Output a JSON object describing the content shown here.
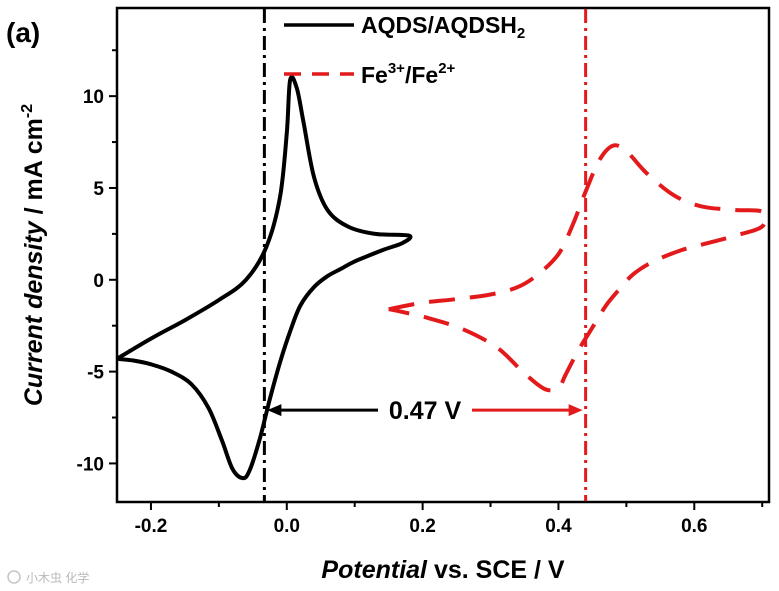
{
  "panel_label": "(a)",
  "watermark": "小木虫 化学",
  "chart_data": {
    "type": "line",
    "xlabel": {
      "italic": "Potential",
      "normal": " vs. SCE / V"
    },
    "ylabel": {
      "italic": "Current density",
      "normal": " / mA cm",
      "sup": "-2"
    },
    "xlim": [
      -0.25,
      0.71
    ],
    "ylim": [
      -12.1,
      14.8
    ],
    "x_ticks": [
      -0.2,
      0.0,
      0.2,
      0.4,
      0.6
    ],
    "x_tick_labels": [
      "-0.2",
      "0.0",
      "0.2",
      "0.4",
      "0.6"
    ],
    "x_minor_ticks": [
      -0.1,
      0.1,
      0.3,
      0.5,
      0.7
    ],
    "y_ticks": [
      -10,
      -5,
      0,
      5,
      10
    ],
    "y_tick_labels": [
      "-10",
      "-5",
      "0",
      "5",
      "10"
    ],
    "y_minor_ticks": [
      -7.5,
      -2.5,
      2.5,
      7.5,
      12.5
    ],
    "legend_position": "top-center",
    "series": [
      {
        "name": "AQDS/AQDSH",
        "name_sub": "2",
        "color": "#000000",
        "style": "solid",
        "points": [
          [
            -0.25,
            -4.3
          ],
          [
            -0.2,
            -3.2
          ],
          [
            -0.15,
            -2.2
          ],
          [
            -0.1,
            -1.1
          ],
          [
            -0.06,
            0.0
          ],
          [
            -0.03,
            1.8
          ],
          [
            -0.01,
            4.5
          ],
          [
            0.0,
            8.0
          ],
          [
            0.005,
            10.9
          ],
          [
            0.015,
            10.4
          ],
          [
            0.025,
            8.5
          ],
          [
            0.04,
            5.6
          ],
          [
            0.06,
            3.8
          ],
          [
            0.09,
            2.9
          ],
          [
            0.13,
            2.5
          ],
          [
            0.18,
            2.4
          ],
          [
            0.17,
            2.0
          ],
          [
            0.14,
            1.6
          ],
          [
            0.1,
            1.0
          ],
          [
            0.08,
            0.6
          ],
          [
            0.06,
            0.2
          ],
          [
            0.04,
            -0.4
          ],
          [
            0.02,
            -1.4
          ],
          [
            0.005,
            -2.8
          ],
          [
            -0.01,
            -4.5
          ],
          [
            -0.025,
            -6.5
          ],
          [
            -0.04,
            -8.7
          ],
          [
            -0.055,
            -10.4
          ],
          [
            -0.065,
            -10.8
          ],
          [
            -0.08,
            -10.3
          ],
          [
            -0.095,
            -8.8
          ],
          [
            -0.115,
            -7.0
          ],
          [
            -0.14,
            -5.7
          ],
          [
            -0.17,
            -5.0
          ],
          [
            -0.2,
            -4.6
          ],
          [
            -0.225,
            -4.4
          ],
          [
            -0.25,
            -4.3
          ]
        ]
      },
      {
        "name": "Fe",
        "name_sup1": "3+",
        "name_mid": "/Fe",
        "name_sup2": "2+",
        "color": "#e31a1c",
        "style": "dashed",
        "points": [
          [
            0.15,
            -1.6
          ],
          [
            0.2,
            -1.25
          ],
          [
            0.25,
            -1.05
          ],
          [
            0.3,
            -0.8
          ],
          [
            0.34,
            -0.4
          ],
          [
            0.37,
            0.3
          ],
          [
            0.4,
            1.4
          ],
          [
            0.42,
            2.9
          ],
          [
            0.44,
            4.8
          ],
          [
            0.46,
            6.5
          ],
          [
            0.48,
            7.3
          ],
          [
            0.5,
            7.0
          ],
          [
            0.53,
            5.8
          ],
          [
            0.57,
            4.6
          ],
          [
            0.61,
            4.0
          ],
          [
            0.66,
            3.8
          ],
          [
            0.7,
            3.7
          ],
          [
            0.7,
            2.9
          ],
          [
            0.66,
            2.4
          ],
          [
            0.62,
            2.0
          ],
          [
            0.58,
            1.6
          ],
          [
            0.54,
            1.0
          ],
          [
            0.51,
            0.3
          ],
          [
            0.49,
            -0.5
          ],
          [
            0.47,
            -1.4
          ],
          [
            0.45,
            -2.6
          ],
          [
            0.43,
            -3.8
          ],
          [
            0.41,
            -5.2
          ],
          [
            0.4,
            -5.9
          ],
          [
            0.38,
            -5.95
          ],
          [
            0.35,
            -5.1
          ],
          [
            0.31,
            -3.7
          ],
          [
            0.26,
            -2.7
          ],
          [
            0.21,
            -2.1
          ],
          [
            0.17,
            -1.75
          ],
          [
            0.15,
            -1.6
          ]
        ]
      }
    ],
    "vlines": [
      {
        "x": -0.033,
        "color": "#000000",
        "style": "dashdot"
      },
      {
        "x": 0.44,
        "color": "#e31a1c",
        "style": "dashdot"
      }
    ],
    "annotation": {
      "text": "0.47 V",
      "y": -7.1,
      "arrow_from": -0.033,
      "arrow_to": 0.44
    }
  }
}
